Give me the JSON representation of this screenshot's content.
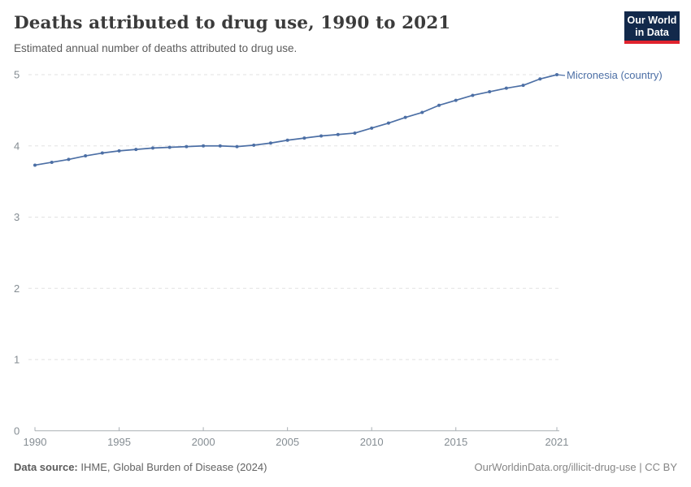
{
  "header": {
    "title": "Deaths attributed to drug use, 1990 to 2021",
    "subtitle": "Estimated annual number of deaths attributed to drug use."
  },
  "logo": {
    "line1": "Our World",
    "line2": "in Data",
    "bg_color": "#12294B",
    "accent_color": "#E0232E"
  },
  "chart_data": {
    "type": "line",
    "title": "Deaths attributed to drug use, 1990 to 2021",
    "subtitle": "Estimated annual number of deaths attributed to drug use.",
    "xlabel": "",
    "ylabel": "",
    "xlim": [
      1990,
      2021
    ],
    "ylim": [
      0,
      5
    ],
    "x_ticks": [
      1990,
      1995,
      2000,
      2005,
      2010,
      2015,
      2021
    ],
    "y_ticks": [
      0,
      1,
      2,
      3,
      4,
      5
    ],
    "grid": "horizontal-dashed",
    "legend_position": "end-of-line-label",
    "series": [
      {
        "name": "Micronesia (country)",
        "color": "#4C6FA5",
        "x": [
          1990,
          1991,
          1992,
          1993,
          1994,
          1995,
          1996,
          1997,
          1998,
          1999,
          2000,
          2001,
          2002,
          2003,
          2004,
          2005,
          2006,
          2007,
          2008,
          2009,
          2010,
          2011,
          2012,
          2013,
          2014,
          2015,
          2016,
          2017,
          2018,
          2019,
          2020,
          2021
        ],
        "values": [
          3.73,
          3.77,
          3.81,
          3.86,
          3.9,
          3.93,
          3.95,
          3.97,
          3.98,
          3.99,
          4.0,
          4.0,
          3.99,
          4.01,
          4.04,
          4.08,
          4.11,
          4.14,
          4.16,
          4.18,
          4.25,
          4.32,
          4.4,
          4.47,
          4.57,
          4.64,
          4.71,
          4.76,
          4.81,
          4.85,
          4.94,
          5.0
        ]
      }
    ]
  },
  "entity_label": "Micronesia (country)",
  "footer": {
    "source_label": "Data source:",
    "source_text": " IHME, Global Burden of Disease (2024)",
    "link_text": "OurWorldinData.org/illicit-drug-use | CC BY"
  },
  "colors": {
    "line": "#4C6FA5",
    "gridline": "#e2e2e2",
    "axis": "#a9afb4",
    "tick_label": "#858d93",
    "title": "#3b3b3b",
    "subtitle": "#5b5b5b"
  }
}
